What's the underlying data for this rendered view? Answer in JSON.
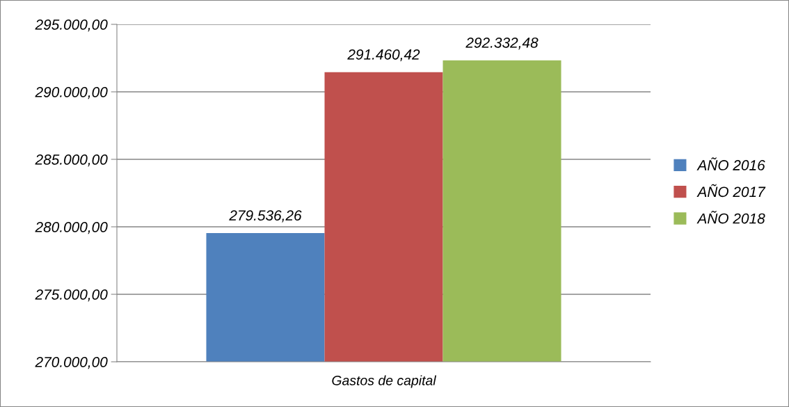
{
  "chart_data": {
    "type": "bar",
    "xlabel": "Gastos de capital",
    "categories": [
      null
    ],
    "series": [
      {
        "name": "AÑO 2016",
        "color": "#4f81bd",
        "values": [
          279536.26
        ],
        "value_labels": [
          "279.536,26"
        ]
      },
      {
        "name": "AÑO 2017",
        "color": "#c0504d",
        "values": [
          291460.42
        ],
        "value_labels": [
          "291.460,42"
        ]
      },
      {
        "name": "AÑO 2018",
        "color": "#9bbb59",
        "values": [
          292332.48
        ],
        "value_labels": [
          "292.332,48"
        ]
      }
    ],
    "ylim": [
      270000,
      295000
    ],
    "yticks": [
      {
        "value": 270000,
        "label": "270.000,00"
      },
      {
        "value": 275000,
        "label": "275.000,00"
      },
      {
        "value": 280000,
        "label": "280.000,00"
      },
      {
        "value": 285000,
        "label": "285.000,00"
      },
      {
        "value": 290000,
        "label": "290.000,00"
      },
      {
        "value": 295000,
        "label": "295.000,00"
      }
    ],
    "grid": "y",
    "legend": "right"
  }
}
